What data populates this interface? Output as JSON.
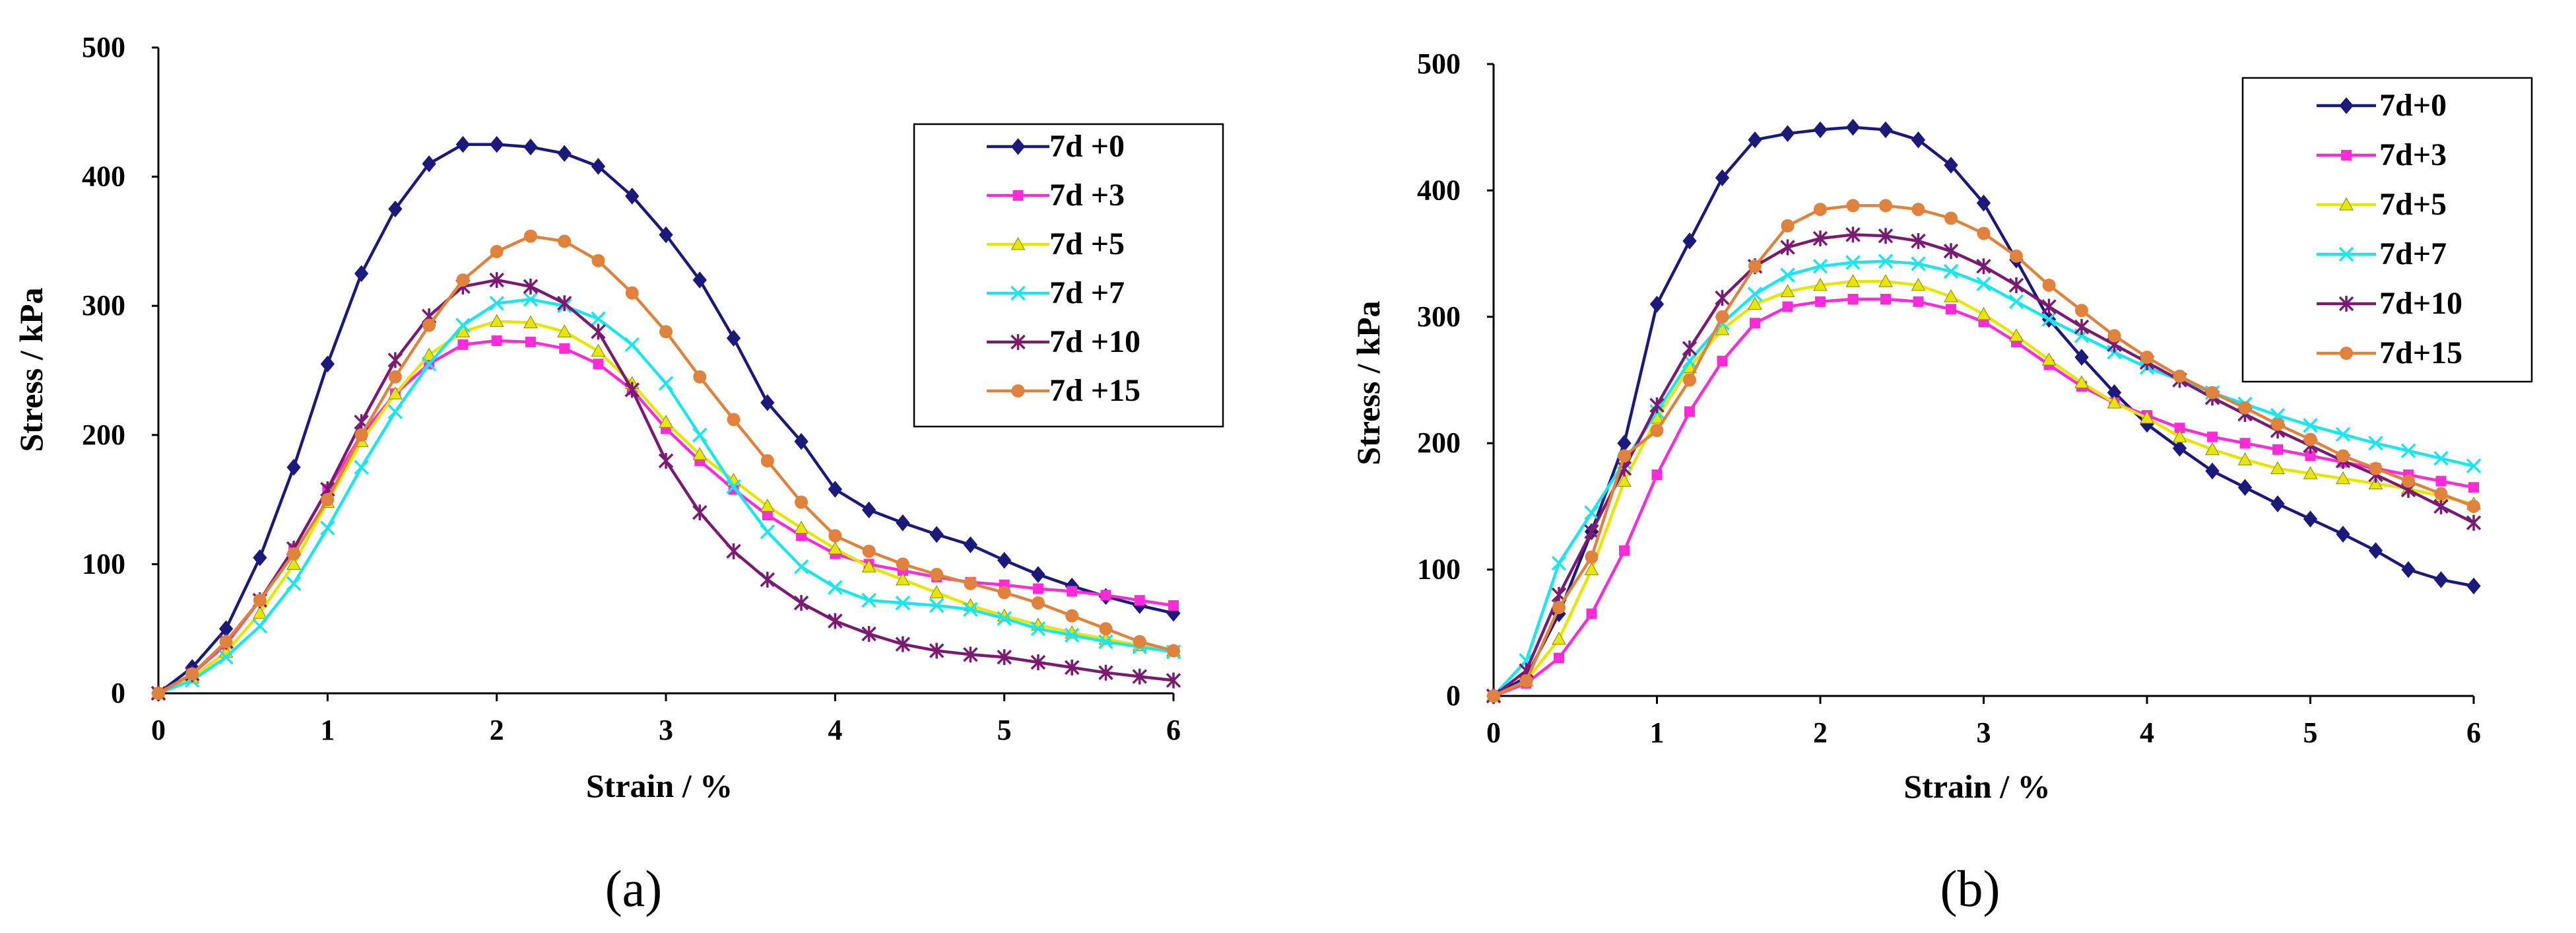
{
  "colors": {
    "7d+0": "#1a1a7c",
    "7d+3": "#ff2bd9",
    "7d+5": "#e6e600",
    "7d+7": "#1ae6f2",
    "7d+10": "#7a1a73",
    "7d+15": "#e0823b"
  },
  "chart_data": [
    {
      "type": "line",
      "caption": "(a)",
      "xlabel": "Strain / %",
      "ylabel": "Stress  / kPa",
      "xlim": [
        0,
        6
      ],
      "ylim": [
        0,
        500
      ],
      "xticks": [
        "0",
        "1",
        "2",
        "3",
        "4",
        "5",
        "6"
      ],
      "yticks": [
        "0",
        "100",
        "200",
        "300",
        "400",
        "500"
      ],
      "legend_position": "top-right",
      "series": [
        {
          "name": "7d +0",
          "key": "7d+0",
          "marker": "diamond",
          "x": [
            0,
            0.2,
            0.4,
            0.6,
            0.8,
            1.0,
            1.2,
            1.4,
            1.6,
            1.8,
            2.0,
            2.2,
            2.4,
            2.6,
            2.8,
            3.0,
            3.2,
            3.4,
            3.6,
            3.8,
            4.0,
            4.2,
            4.4,
            4.6,
            4.8,
            5.0,
            5.2,
            5.4,
            5.6,
            5.8,
            6.0
          ],
          "y": [
            0,
            20,
            50,
            105,
            175,
            255,
            325,
            375,
            410,
            425,
            425,
            423,
            418,
            408,
            385,
            355,
            320,
            275,
            225,
            195,
            158,
            142,
            132,
            123,
            115,
            103,
            92,
            83,
            75,
            68,
            62
          ]
        },
        {
          "name": "7d +3",
          "key": "7d+3",
          "marker": "square",
          "x": [
            0,
            0.2,
            0.4,
            0.6,
            0.8,
            1.0,
            1.2,
            1.4,
            1.6,
            1.8,
            2.0,
            2.2,
            2.4,
            2.6,
            2.8,
            3.0,
            3.2,
            3.4,
            3.6,
            3.8,
            4.0,
            4.2,
            4.4,
            4.6,
            4.8,
            5.0,
            5.2,
            5.4,
            5.6,
            5.8,
            6.0
          ],
          "y": [
            0,
            15,
            38,
            72,
            112,
            158,
            200,
            232,
            255,
            270,
            273,
            272,
            267,
            255,
            235,
            205,
            180,
            158,
            138,
            122,
            108,
            100,
            95,
            90,
            86,
            84,
            81,
            79,
            76,
            72,
            68
          ]
        },
        {
          "name": "7d +5",
          "key": "7d+5",
          "marker": "triangle",
          "x": [
            0,
            0.2,
            0.4,
            0.6,
            0.8,
            1.0,
            1.2,
            1.4,
            1.6,
            1.8,
            2.0,
            2.2,
            2.4,
            2.6,
            2.8,
            3.0,
            3.2,
            3.4,
            3.6,
            3.8,
            4.0,
            4.2,
            4.4,
            4.6,
            4.8,
            5.0,
            5.2,
            5.4,
            5.6,
            5.8,
            6.0
          ],
          "y": [
            0,
            12,
            32,
            62,
            100,
            148,
            195,
            232,
            262,
            280,
            288,
            287,
            280,
            265,
            240,
            210,
            185,
            165,
            145,
            128,
            112,
            98,
            88,
            78,
            68,
            60,
            53,
            47,
            42,
            37,
            33
          ]
        },
        {
          "name": "7d +7",
          "key": "7d+7",
          "marker": "x",
          "x": [
            0,
            0.2,
            0.4,
            0.6,
            0.8,
            1.0,
            1.2,
            1.4,
            1.6,
            1.8,
            2.0,
            2.2,
            2.4,
            2.6,
            2.8,
            3.0,
            3.2,
            3.4,
            3.6,
            3.8,
            4.0,
            4.2,
            4.4,
            4.6,
            4.8,
            5.0,
            5.2,
            5.4,
            5.6,
            5.8,
            6.0
          ],
          "y": [
            0,
            10,
            28,
            52,
            85,
            128,
            175,
            218,
            255,
            285,
            302,
            305,
            300,
            290,
            270,
            240,
            200,
            160,
            125,
            98,
            82,
            72,
            70,
            68,
            65,
            58,
            50,
            45,
            40,
            36,
            32
          ]
        },
        {
          "name": "7d +10",
          "key": "7d+10",
          "marker": "star",
          "x": [
            0,
            0.2,
            0.4,
            0.6,
            0.8,
            1.0,
            1.2,
            1.4,
            1.6,
            1.8,
            2.0,
            2.2,
            2.4,
            2.6,
            2.8,
            3.0,
            3.2,
            3.4,
            3.6,
            3.8,
            4.0,
            4.2,
            4.4,
            4.6,
            4.8,
            5.0,
            5.2,
            5.4,
            5.6,
            5.8,
            6.0
          ],
          "y": [
            0,
            15,
            40,
            72,
            112,
            158,
            210,
            258,
            292,
            315,
            320,
            315,
            302,
            280,
            235,
            180,
            140,
            110,
            88,
            70,
            56,
            46,
            38,
            33,
            30,
            28,
            24,
            20,
            16,
            13,
            10
          ]
        },
        {
          "name": "7d +15",
          "key": "7d+15",
          "marker": "circle",
          "x": [
            0,
            0.2,
            0.4,
            0.6,
            0.8,
            1.0,
            1.2,
            1.4,
            1.6,
            1.8,
            2.0,
            2.2,
            2.4,
            2.6,
            2.8,
            3.0,
            3.2,
            3.4,
            3.6,
            3.8,
            4.0,
            4.2,
            4.4,
            4.6,
            4.8,
            5.0,
            5.2,
            5.4,
            5.6,
            5.8,
            6.0
          ],
          "y": [
            0,
            15,
            40,
            72,
            108,
            150,
            200,
            245,
            285,
            320,
            342,
            354,
            350,
            335,
            310,
            280,
            245,
            212,
            180,
            148,
            122,
            110,
            100,
            92,
            85,
            78,
            70,
            60,
            50,
            40,
            33
          ]
        }
      ]
    },
    {
      "type": "line",
      "caption": "(b)",
      "xlabel": "Strain / %",
      "ylabel": "Stress  / kPa",
      "xlim": [
        0,
        6
      ],
      "ylim": [
        0,
        500
      ],
      "xticks": [
        "0",
        "1",
        "2",
        "3",
        "4",
        "5",
        "6"
      ],
      "yticks": [
        "0",
        "100",
        "200",
        "300",
        "400",
        "500"
      ],
      "legend_position": "top-right",
      "series": [
        {
          "name": "7d+0",
          "key": "7d+0",
          "marker": "diamond",
          "x": [
            0,
            0.2,
            0.4,
            0.6,
            0.8,
            1.0,
            1.2,
            1.4,
            1.6,
            1.8,
            2.0,
            2.2,
            2.4,
            2.6,
            2.8,
            3.0,
            3.2,
            3.4,
            3.6,
            3.8,
            4.0,
            4.2,
            4.4,
            4.6,
            4.8,
            5.0,
            5.2,
            5.4,
            5.6,
            5.8,
            6.0
          ],
          "y": [
            0,
            15,
            65,
            130,
            200,
            310,
            360,
            410,
            440,
            445,
            448,
            450,
            448,
            440,
            420,
            390,
            345,
            298,
            268,
            240,
            215,
            196,
            178,
            165,
            152,
            140,
            128,
            115,
            100,
            92,
            87
          ]
        },
        {
          "name": "7d+3",
          "key": "7d+3",
          "marker": "square",
          "x": [
            0,
            0.2,
            0.4,
            0.6,
            0.8,
            1.0,
            1.2,
            1.4,
            1.6,
            1.8,
            2.0,
            2.2,
            2.4,
            2.6,
            2.8,
            3.0,
            3.2,
            3.4,
            3.6,
            3.8,
            4.0,
            4.2,
            4.4,
            4.6,
            4.8,
            5.0,
            5.2,
            5.4,
            5.6,
            5.8,
            6.0
          ],
          "y": [
            0,
            10,
            30,
            65,
            115,
            175,
            225,
            265,
            295,
            308,
            312,
            314,
            314,
            312,
            306,
            296,
            280,
            262,
            245,
            232,
            222,
            212,
            205,
            200,
            195,
            190,
            185,
            180,
            175,
            170,
            165
          ]
        },
        {
          "name": "7d+5",
          "key": "7d+5",
          "marker": "triangle",
          "x": [
            0,
            0.2,
            0.4,
            0.6,
            0.8,
            1.0,
            1.2,
            1.4,
            1.6,
            1.8,
            2.0,
            2.2,
            2.4,
            2.6,
            2.8,
            3.0,
            3.2,
            3.4,
            3.6,
            3.8,
            4.0,
            4.2,
            4.4,
            4.6,
            4.8,
            5.0,
            5.2,
            5.4,
            5.6,
            5.8,
            6.0
          ],
          "y": [
            0,
            12,
            45,
            100,
            170,
            220,
            260,
            290,
            310,
            320,
            325,
            328,
            328,
            325,
            316,
            302,
            285,
            266,
            248,
            232,
            220,
            205,
            195,
            187,
            180,
            176,
            172,
            168,
            164,
            158,
            152
          ]
        },
        {
          "name": "7d+7",
          "key": "7d+7",
          "marker": "x",
          "x": [
            0,
            0.2,
            0.4,
            0.6,
            0.8,
            1.0,
            1.2,
            1.4,
            1.6,
            1.8,
            2.0,
            2.2,
            2.4,
            2.6,
            2.8,
            3.0,
            3.2,
            3.4,
            3.6,
            3.8,
            4.0,
            4.2,
            4.4,
            4.6,
            4.8,
            5.0,
            5.2,
            5.4,
            5.6,
            5.8,
            6.0
          ],
          "y": [
            0,
            28,
            105,
            145,
            185,
            225,
            265,
            295,
            318,
            333,
            340,
            343,
            344,
            342,
            336,
            326,
            312,
            298,
            285,
            272,
            260,
            250,
            240,
            231,
            222,
            214,
            207,
            200,
            194,
            188,
            182
          ]
        },
        {
          "name": "7d+10",
          "key": "7d+10",
          "marker": "star",
          "x": [
            0,
            0.2,
            0.4,
            0.6,
            0.8,
            1.0,
            1.2,
            1.4,
            1.6,
            1.8,
            2.0,
            2.2,
            2.4,
            2.6,
            2.8,
            3.0,
            3.2,
            3.4,
            3.6,
            3.8,
            4.0,
            4.2,
            4.4,
            4.6,
            4.8,
            5.0,
            5.2,
            5.4,
            5.6,
            5.8,
            6.0
          ],
          "y": [
            0,
            20,
            80,
            130,
            180,
            230,
            275,
            315,
            340,
            355,
            362,
            365,
            364,
            360,
            352,
            340,
            325,
            308,
            292,
            278,
            264,
            250,
            236,
            223,
            210,
            198,
            186,
            175,
            163,
            150,
            137
          ]
        },
        {
          "name": "7d+15",
          "key": "7d+15",
          "marker": "circle",
          "x": [
            0,
            0.2,
            0.4,
            0.6,
            0.8,
            1.0,
            1.2,
            1.4,
            1.6,
            1.8,
            2.0,
            2.2,
            2.4,
            2.6,
            2.8,
            3.0,
            3.2,
            3.4,
            3.6,
            3.8,
            4.0,
            4.2,
            4.4,
            4.6,
            4.8,
            5.0,
            5.2,
            5.4,
            5.6,
            5.8,
            6.0
          ],
          "y": [
            0,
            12,
            70,
            110,
            190,
            210,
            250,
            300,
            340,
            372,
            385,
            388,
            388,
            385,
            378,
            366,
            348,
            325,
            305,
            285,
            268,
            253,
            240,
            228,
            215,
            203,
            190,
            180,
            170,
            160,
            150
          ]
        }
      ]
    }
  ]
}
